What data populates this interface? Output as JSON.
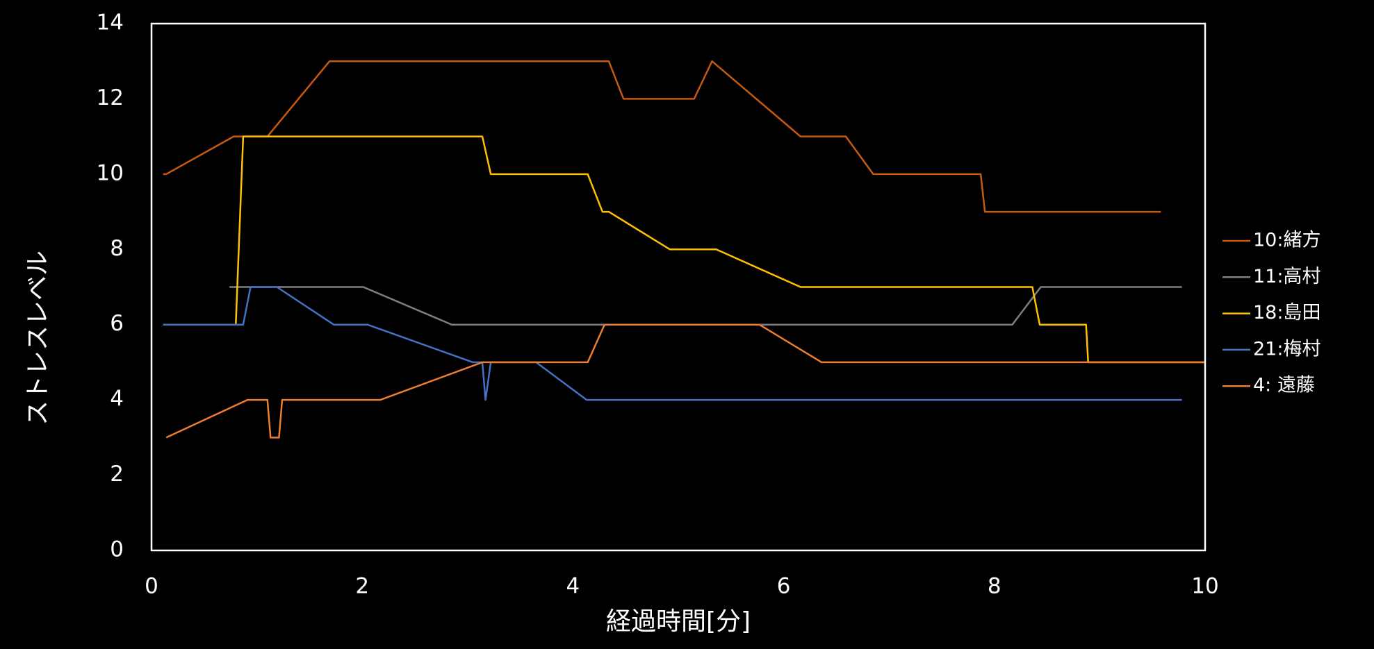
{
  "chart_data": {
    "type": "line",
    "x_label": "経過時間[分]",
    "y_label": "ストレスレベル",
    "xlim": [
      0,
      10
    ],
    "ylim": [
      0,
      14
    ],
    "xticks": [
      0,
      2,
      4,
      6,
      8,
      10
    ],
    "yticks": [
      0,
      2,
      4,
      6,
      8,
      10,
      12,
      14
    ],
    "grid": false,
    "legend": "right",
    "series": [
      {
        "name": "10:緒方",
        "color": "#c55a11",
        "x": [
          0.11,
          0.14,
          0.78,
          1.1,
          1.69,
          4.34,
          4.48,
          5.15,
          5.32,
          6.16,
          6.59,
          6.85,
          7.87,
          7.91,
          9.58
        ],
        "values": [
          10,
          10,
          11,
          11,
          13,
          13,
          12,
          12,
          13,
          11,
          11,
          10,
          10,
          9,
          9
        ]
      },
      {
        "name": "11:高村",
        "color": "#7f7f7f",
        "x": [
          0.74,
          2.01,
          2.85,
          8.17,
          8.44,
          9.78
        ],
        "values": [
          7,
          7,
          6,
          6,
          7,
          7
        ]
      },
      {
        "name": "18:島田",
        "color": "#ffc000",
        "x": [
          0.11,
          0.8,
          0.87,
          3.14,
          3.22,
          4.14,
          4.28,
          4.34,
          4.92,
          5.36,
          6.16,
          8.36,
          8.43,
          8.87,
          8.89,
          10
        ],
        "values": [
          6,
          6,
          11,
          11,
          10,
          10,
          9,
          9,
          8,
          8,
          7,
          7,
          6,
          6,
          5,
          5
        ]
      },
      {
        "name": "21:梅村",
        "color": "#4472c4",
        "x": [
          0.11,
          0.87,
          0.94,
          1.19,
          1.73,
          2.05,
          3.05,
          3.14,
          3.17,
          3.22,
          3.65,
          4.13,
          9.78
        ],
        "values": [
          6,
          6,
          7,
          7,
          6,
          6,
          5,
          5,
          4,
          5,
          5,
          4,
          4
        ]
      },
      {
        "name": "4: 遠藤",
        "color": "#ed7d31",
        "x": [
          0.14,
          0.91,
          1.1,
          1.13,
          1.21,
          1.24,
          2.17,
          3.14,
          4.14,
          4.3,
          5.77,
          6.36,
          10
        ],
        "values": [
          3,
          4,
          4,
          3,
          3,
          4,
          4,
          5,
          5,
          6,
          6,
          5,
          5
        ]
      }
    ]
  }
}
